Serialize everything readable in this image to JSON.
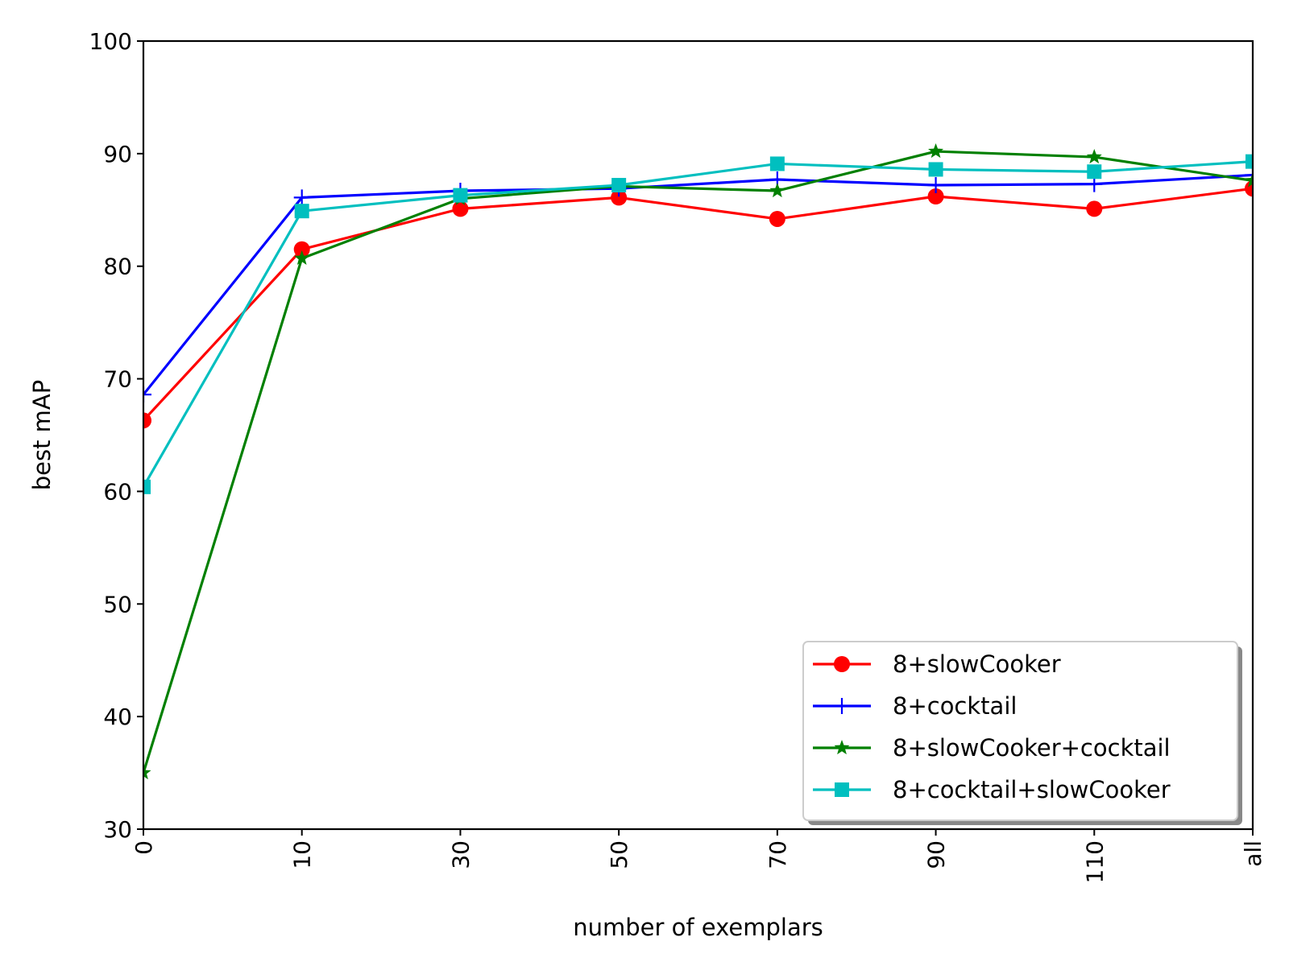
{
  "chart_data": {
    "type": "line",
    "title": "",
    "xlabel": "number of exemplars",
    "ylabel": "best mAP",
    "categories": [
      "0",
      "10",
      "30",
      "50",
      "70",
      "90",
      "110",
      "all"
    ],
    "ylim": [
      30,
      100
    ],
    "yticks": [
      30,
      40,
      50,
      60,
      70,
      80,
      90,
      100
    ],
    "grid": false,
    "legend_position": "lower-right",
    "series": [
      {
        "name": "8+slowCooker",
        "color": "#ff0000",
        "marker": "circle",
        "values": [
          66.3,
          81.5,
          85.1,
          86.1,
          84.2,
          86.2,
          85.1,
          86.9
        ]
      },
      {
        "name": "8+cocktail",
        "color": "#0000ff",
        "marker": "plus",
        "values": [
          68.6,
          86.1,
          86.7,
          86.9,
          87.7,
          87.2,
          87.3,
          88.1
        ]
      },
      {
        "name": "8+slowCooker+cocktail",
        "color": "#008000",
        "marker": "star",
        "values": [
          35.0,
          80.7,
          86.0,
          87.1,
          86.7,
          90.2,
          89.7,
          87.6
        ]
      },
      {
        "name": "8+cocktail+slowCooker",
        "color": "#00bfbf",
        "marker": "square",
        "values": [
          60.4,
          84.9,
          86.3,
          87.2,
          89.1,
          88.6,
          88.4,
          89.3
        ]
      }
    ]
  }
}
